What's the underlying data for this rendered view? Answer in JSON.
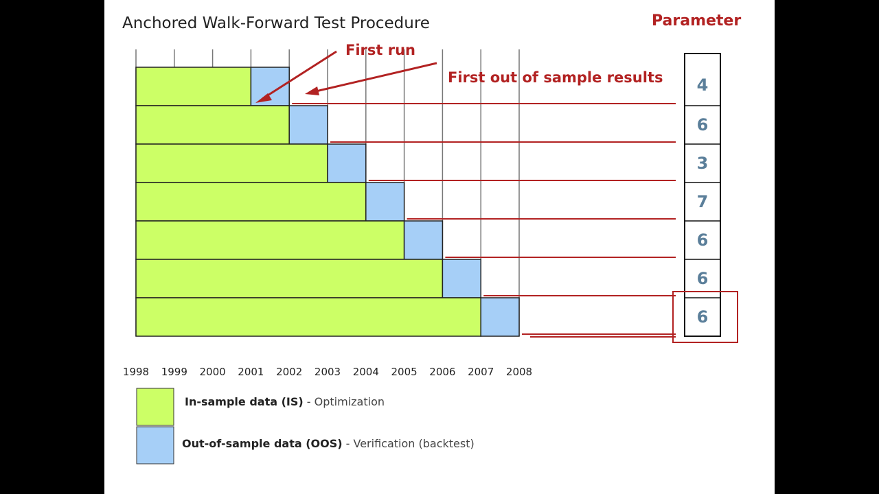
{
  "title": "Anchored Walk-Forward Test Procedure",
  "parameter_header": "Parameter",
  "annotations": {
    "first_run": "First run",
    "first_oos": "First out of sample results"
  },
  "years": [
    "1998",
    "1999",
    "2000",
    "2001",
    "2002",
    "2003",
    "2004",
    "2005",
    "2006",
    "2007",
    "2008"
  ],
  "runs": [
    {
      "is_start": 1998,
      "is_end": 2001,
      "oos_end": 2002
    },
    {
      "is_start": 1998,
      "is_end": 2002,
      "oos_end": 2003
    },
    {
      "is_start": 1998,
      "is_end": 2003,
      "oos_end": 2004
    },
    {
      "is_start": 1998,
      "is_end": 2004,
      "oos_end": 2005
    },
    {
      "is_start": 1998,
      "is_end": 2005,
      "oos_end": 2006
    },
    {
      "is_start": 1998,
      "is_end": 2006,
      "oos_end": 2007
    },
    {
      "is_start": 1998,
      "is_end": 2007,
      "oos_end": 2008
    }
  ],
  "parameters": [
    "4",
    "6",
    "3",
    "7",
    "6",
    "6",
    "6"
  ],
  "legend": {
    "is_bold": "In-sample data (IS)",
    "is_desc": " - Optimization",
    "oos_bold": "Out-of-sample data (OOS)",
    "oos_desc": " - Verification (backtest)"
  },
  "colors": {
    "in_sample": "#ccff66",
    "out_of_sample": "#a6cff7",
    "accent": "#b22222",
    "parameter_text": "#5b7f9a"
  }
}
